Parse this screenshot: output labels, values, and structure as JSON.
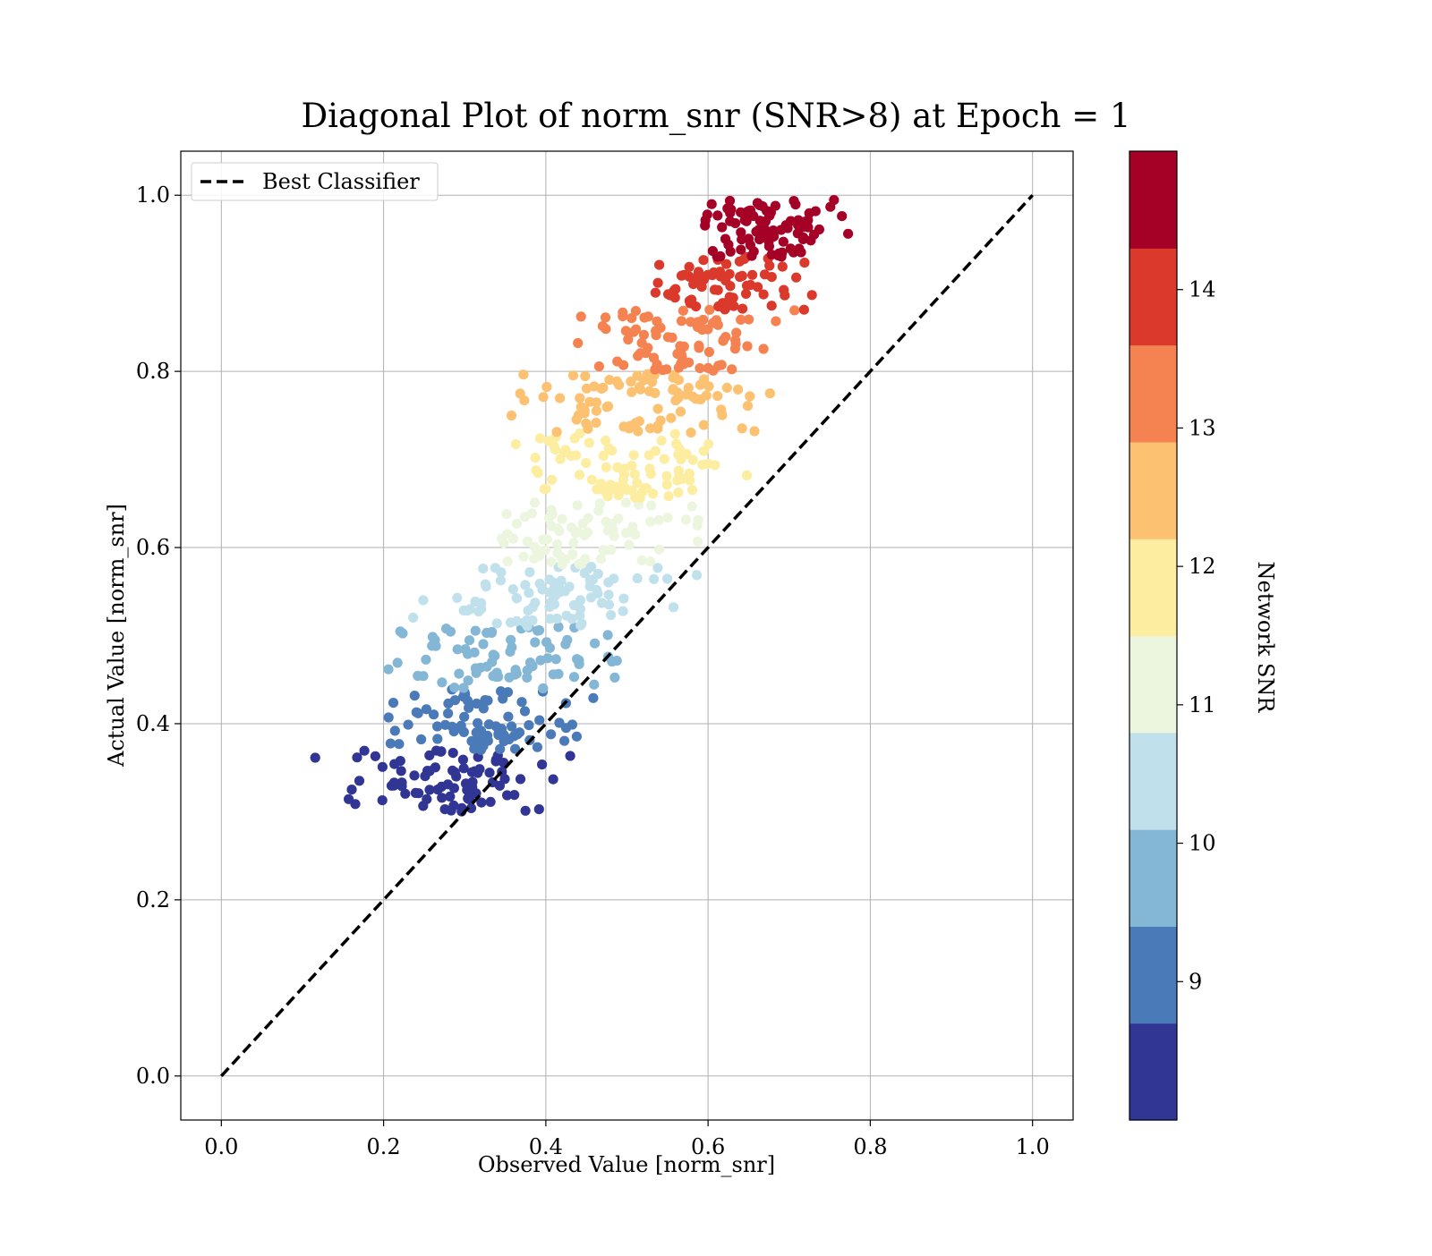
{
  "chart_data": {
    "type": "scatter",
    "title": "Diagonal Plot of norm_snr (SNR>8) at Epoch = 1",
    "xlabel": "Observed Value [norm_snr]",
    "ylabel": "Actual Value [norm_snr]",
    "xlim": [
      -0.05,
      1.05
    ],
    "ylim": [
      -0.05,
      1.05
    ],
    "xticks": [
      "0.0",
      "0.2",
      "0.4",
      "0.6",
      "0.8",
      "1.0"
    ],
    "yticks": [
      "0.0",
      "0.2",
      "0.4",
      "0.6",
      "0.8",
      "1.0"
    ],
    "grid": true,
    "legend": {
      "position": "top-left",
      "entries": [
        "Best Classifier"
      ]
    },
    "reference_line": {
      "name": "Best Classifier",
      "x": [
        0,
        1
      ],
      "y": [
        0,
        1
      ],
      "style": "dashed",
      "color": "#000000"
    },
    "colorbar": {
      "label": "Network SNR",
      "range": [
        8,
        15
      ],
      "ticks": [
        "9",
        "10",
        "11",
        "12",
        "13",
        "14"
      ],
      "bins": [
        {
          "from": 8.0,
          "to": 8.7,
          "color": "#313695"
        },
        {
          "from": 8.7,
          "to": 9.4,
          "color": "#4a7ab7"
        },
        {
          "from": 9.4,
          "to": 10.1,
          "color": "#84b6d6"
        },
        {
          "from": 10.1,
          "to": 10.8,
          "color": "#c0e1ec"
        },
        {
          "from": 10.8,
          "to": 11.5,
          "color": "#ecf6df"
        },
        {
          "from": 11.5,
          "to": 12.2,
          "color": "#fdeda0"
        },
        {
          "from": 12.2,
          "to": 12.9,
          "color": "#fcc171"
        },
        {
          "from": 12.9,
          "to": 13.6,
          "color": "#f58251"
        },
        {
          "from": 13.6,
          "to": 14.3,
          "color": "#da392b"
        },
        {
          "from": 14.3,
          "to": 15.0,
          "color": "#a50026"
        }
      ]
    },
    "point_bands": [
      {
        "snr": 8.3,
        "n": 85,
        "x_center": 0.28,
        "x_spread": 0.19,
        "y_range": [
          0.3,
          0.37
        ]
      },
      {
        "snr": 9.0,
        "n": 80,
        "x_center": 0.32,
        "x_spread": 0.19,
        "y_range": [
          0.37,
          0.44
        ]
      },
      {
        "snr": 9.8,
        "n": 80,
        "x_center": 0.35,
        "x_spread": 0.21,
        "y_range": [
          0.44,
          0.51
        ]
      },
      {
        "snr": 10.5,
        "n": 85,
        "x_center": 0.4,
        "x_spread": 0.21,
        "y_range": [
          0.51,
          0.58
        ]
      },
      {
        "snr": 11.2,
        "n": 80,
        "x_center": 0.45,
        "x_spread": 0.2,
        "y_range": [
          0.58,
          0.655
        ]
      },
      {
        "snr": 11.9,
        "n": 85,
        "x_center": 0.5,
        "x_spread": 0.19,
        "y_range": [
          0.655,
          0.73
        ]
      },
      {
        "snr": 12.6,
        "n": 85,
        "x_center": 0.52,
        "x_spread": 0.21,
        "y_range": [
          0.73,
          0.8
        ]
      },
      {
        "snr": 13.3,
        "n": 80,
        "x_center": 0.57,
        "x_spread": 0.18,
        "y_range": [
          0.8,
          0.87
        ]
      },
      {
        "snr": 14.0,
        "n": 70,
        "x_center": 0.63,
        "x_spread": 0.15,
        "y_range": [
          0.87,
          0.93
        ]
      },
      {
        "snr": 14.7,
        "n": 90,
        "x_center": 0.68,
        "x_spread": 0.12,
        "y_range": [
          0.93,
          1.0
        ]
      }
    ]
  }
}
